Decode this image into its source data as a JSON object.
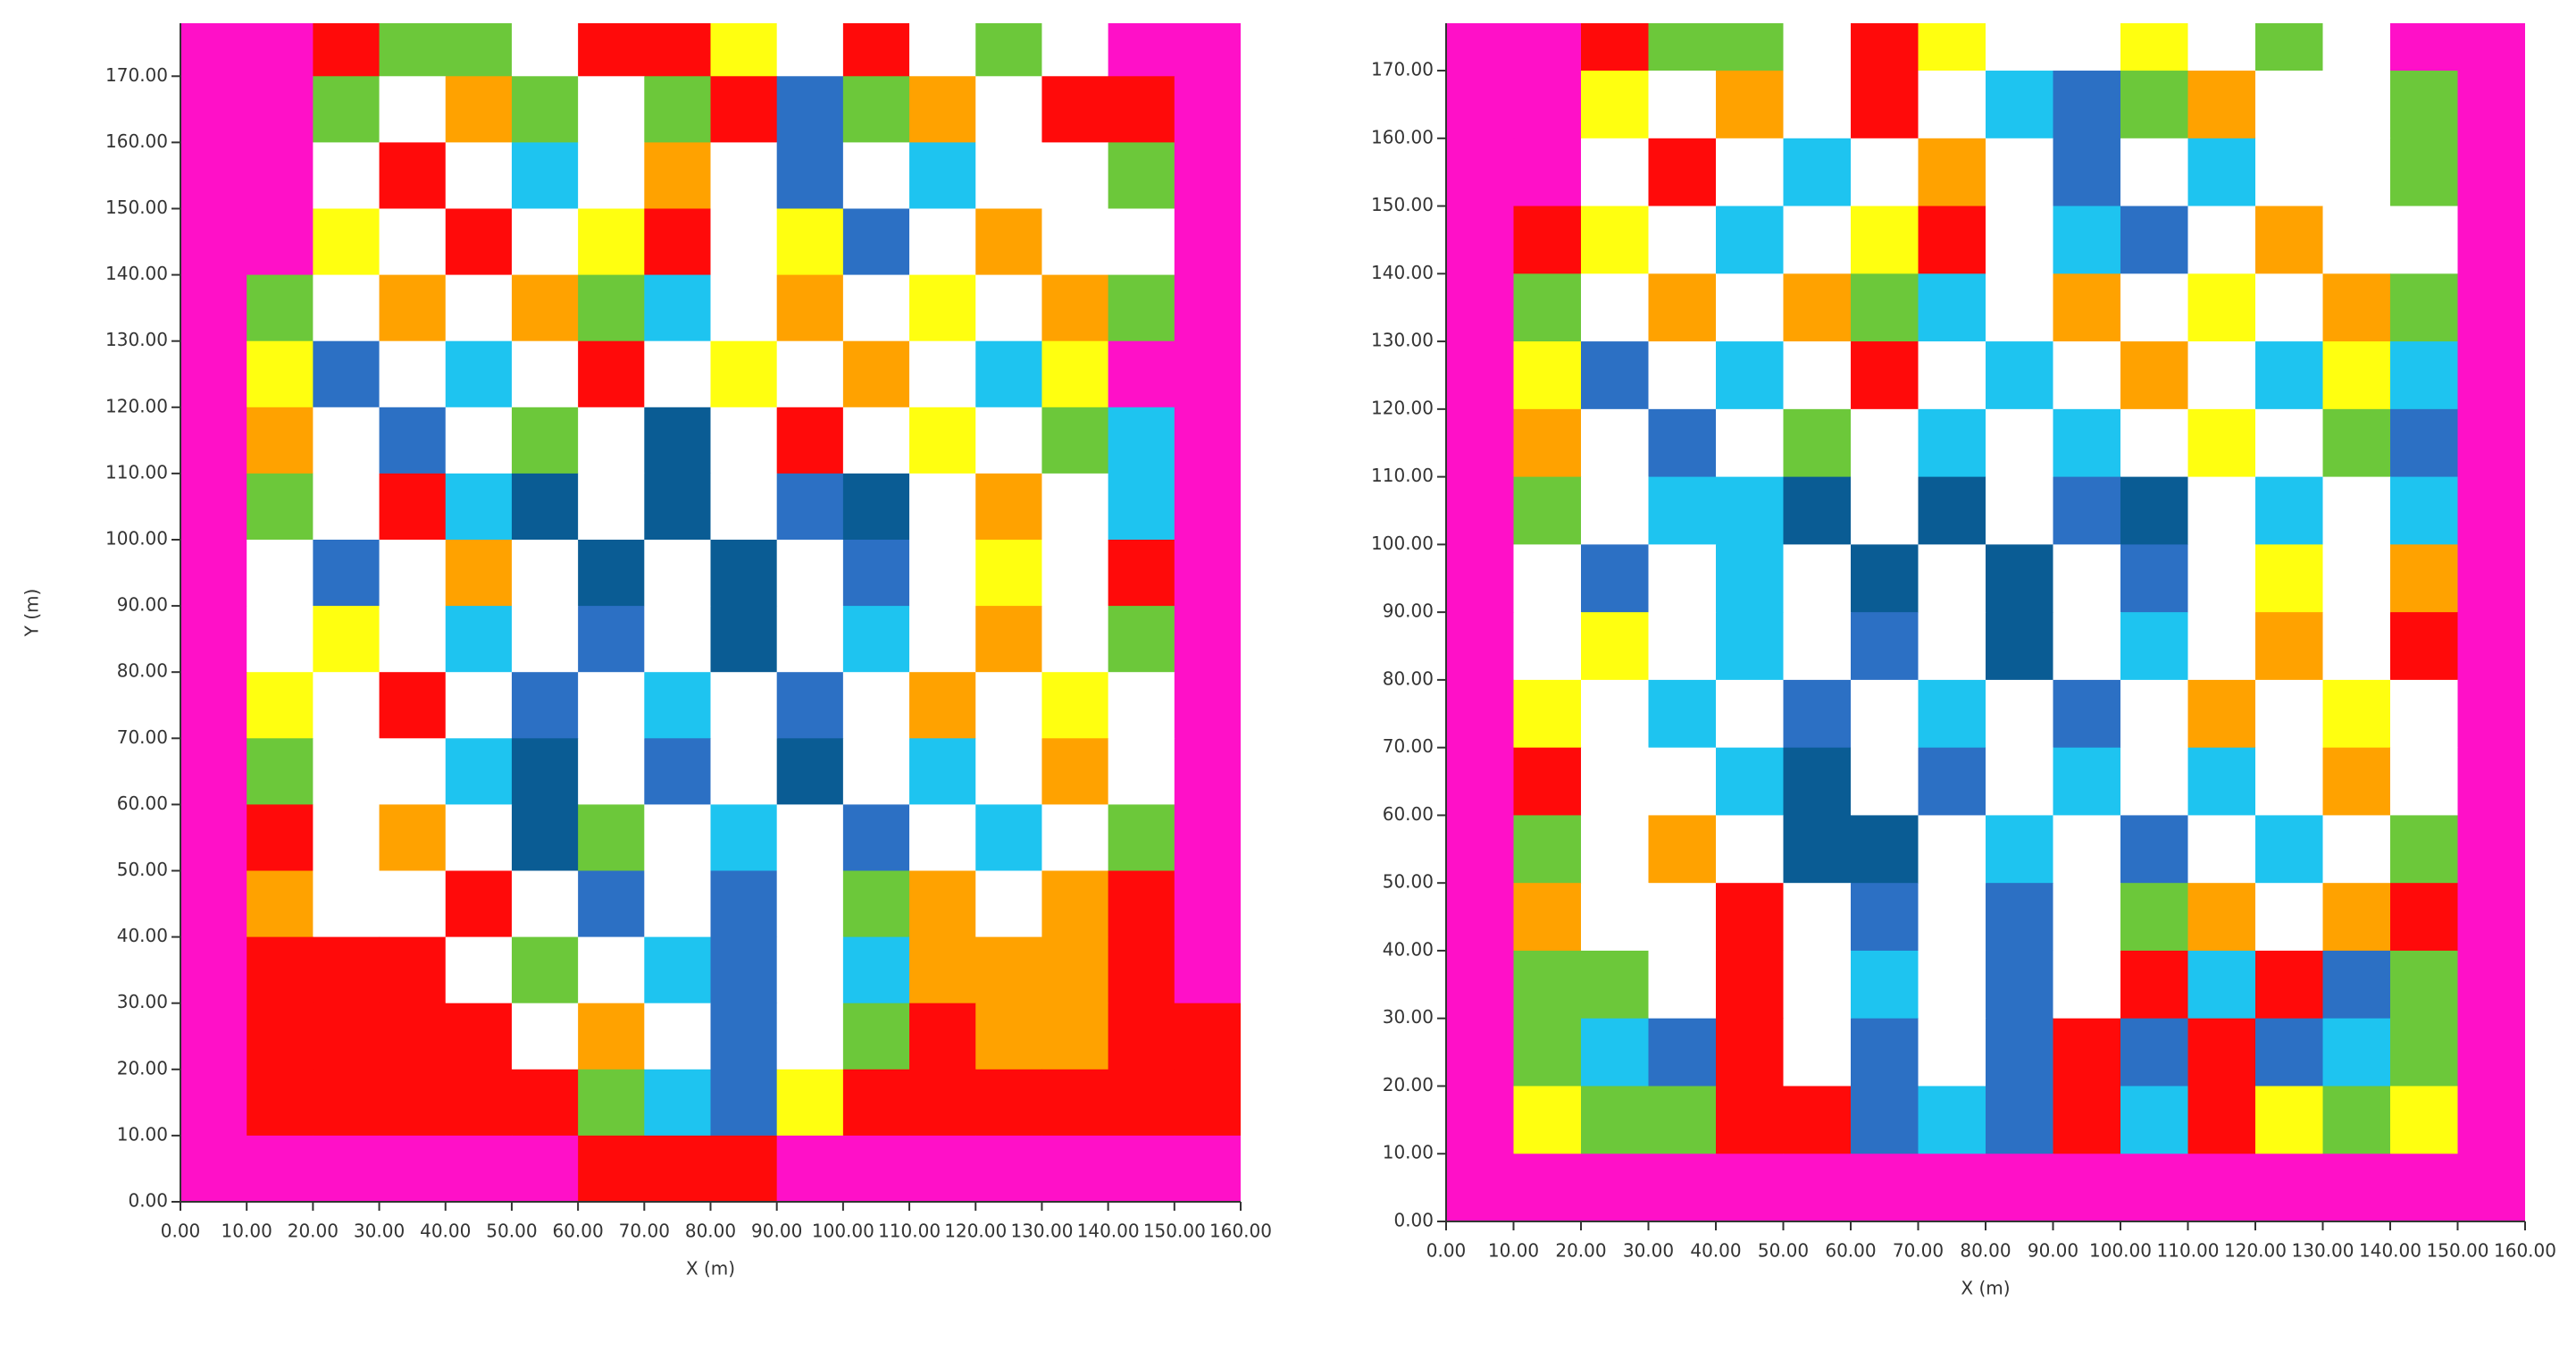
{
  "chart_data": [
    {
      "type": "heatmap",
      "x_label": "X (m)",
      "y_label": "Y (m)",
      "xlim": [
        0,
        160
      ],
      "ylim": [
        0,
        178
      ],
      "xticks": [
        {
          "value": 0,
          "label": "0.00"
        },
        {
          "value": 10,
          "label": "10.00"
        },
        {
          "value": 20,
          "label": "20.00"
        },
        {
          "value": 30,
          "label": "30.00"
        },
        {
          "value": 40,
          "label": "40.00"
        },
        {
          "value": 50,
          "label": "50.00"
        },
        {
          "value": 60,
          "label": "60.00"
        },
        {
          "value": 70,
          "label": "70.00"
        },
        {
          "value": 80,
          "label": "80.00"
        },
        {
          "value": 90,
          "label": "90.00"
        },
        {
          "value": 100,
          "label": "100.00"
        },
        {
          "value": 110,
          "label": "110.00"
        },
        {
          "value": 120,
          "label": "120.00"
        },
        {
          "value": 130,
          "label": "130.00"
        },
        {
          "value": 140,
          "label": "140.00"
        },
        {
          "value": 150,
          "label": "150.00"
        },
        {
          "value": 160,
          "label": "160.00"
        }
      ],
      "yticks": [
        {
          "value": 0,
          "label": "0.00"
        },
        {
          "value": 10,
          "label": "10.00"
        },
        {
          "value": 20,
          "label": "20.00"
        },
        {
          "value": 30,
          "label": "30.00"
        },
        {
          "value": 40,
          "label": "40.00"
        },
        {
          "value": 50,
          "label": "50.00"
        },
        {
          "value": 60,
          "label": "60.00"
        },
        {
          "value": 70,
          "label": "70.00"
        },
        {
          "value": 80,
          "label": "80.00"
        },
        {
          "value": 90,
          "label": "90.00"
        },
        {
          "value": 100,
          "label": "100.00"
        },
        {
          "value": 110,
          "label": "110.00"
        },
        {
          "value": 120,
          "label": "120.00"
        },
        {
          "value": 130,
          "label": "130.00"
        },
        {
          "value": 140,
          "label": "140.00"
        },
        {
          "value": 150,
          "label": "150.00"
        },
        {
          "value": 160,
          "label": "160.00"
        },
        {
          "value": 170,
          "label": "170.00"
        }
      ],
      "colors": [
        "#ff10c8",
        "#ff0a0a",
        "#ffa200",
        "#ffff10",
        "#6cc83a",
        "#1ec4f0",
        "#2c70c4",
        "#0a5c94",
        "#ffffff"
      ],
      "xbins": [
        0,
        10,
        20,
        30,
        40,
        50,
        60,
        70,
        80,
        90,
        100,
        110,
        120,
        130,
        140,
        150,
        160
      ],
      "ybins": [
        180,
        170,
        160,
        150,
        140,
        130,
        120,
        110,
        100,
        90,
        80,
        70,
        60,
        50,
        40,
        30,
        20,
        10,
        0
      ],
      "values": [
        [
          0,
          0,
          1,
          4,
          4,
          8,
          1,
          1,
          3,
          8,
          1,
          8,
          4,
          8,
          0,
          0
        ],
        [
          0,
          0,
          4,
          8,
          2,
          4,
          8,
          4,
          1,
          6,
          4,
          2,
          8,
          1,
          1,
          0
        ],
        [
          0,
          0,
          8,
          1,
          8,
          5,
          8,
          2,
          8,
          6,
          8,
          5,
          8,
          8,
          4,
          0
        ],
        [
          0,
          0,
          3,
          8,
          1,
          8,
          3,
          1,
          8,
          3,
          6,
          8,
          2,
          8,
          8,
          0
        ],
        [
          0,
          4,
          8,
          2,
          8,
          2,
          4,
          5,
          8,
          2,
          8,
          3,
          8,
          2,
          4,
          0
        ],
        [
          0,
          3,
          6,
          8,
          5,
          8,
          1,
          8,
          3,
          8,
          2,
          8,
          5,
          3,
          0,
          0
        ],
        [
          0,
          2,
          8,
          6,
          8,
          4,
          8,
          7,
          8,
          1,
          8,
          3,
          8,
          4,
          5,
          0
        ],
        [
          0,
          4,
          8,
          1,
          5,
          7,
          8,
          7,
          8,
          6,
          7,
          8,
          2,
          8,
          5,
          0
        ],
        [
          0,
          8,
          6,
          8,
          2,
          8,
          7,
          8,
          7,
          8,
          6,
          8,
          3,
          8,
          1,
          0
        ],
        [
          0,
          8,
          3,
          8,
          5,
          8,
          6,
          8,
          7,
          8,
          5,
          8,
          2,
          8,
          4,
          0
        ],
        [
          0,
          3,
          8,
          1,
          8,
          6,
          8,
          5,
          8,
          6,
          8,
          2,
          8,
          3,
          8,
          0
        ],
        [
          0,
          4,
          8,
          8,
          5,
          7,
          8,
          6,
          8,
          7,
          8,
          5,
          8,
          2,
          8,
          0
        ],
        [
          0,
          1,
          8,
          2,
          8,
          7,
          4,
          8,
          5,
          8,
          6,
          8,
          5,
          8,
          4,
          0
        ],
        [
          0,
          2,
          8,
          8,
          1,
          8,
          6,
          8,
          6,
          8,
          4,
          2,
          8,
          2,
          1,
          0
        ],
        [
          0,
          1,
          1,
          1,
          8,
          4,
          8,
          5,
          6,
          8,
          5,
          2,
          2,
          2,
          1,
          0
        ],
        [
          0,
          1,
          1,
          1,
          1,
          8,
          2,
          8,
          6,
          8,
          4,
          1,
          2,
          2,
          1,
          1
        ],
        [
          0,
          1,
          1,
          1,
          1,
          1,
          4,
          5,
          6,
          3,
          1,
          1,
          1,
          1,
          1,
          1
        ],
        [
          0,
          0,
          0,
          0,
          0,
          0,
          1,
          1,
          1,
          0,
          0,
          0,
          0,
          0,
          0,
          0
        ]
      ]
    },
    {
      "type": "heatmap",
      "x_label": "X (m)",
      "xlim": [
        0,
        160
      ],
      "ylim": [
        0,
        177
      ],
      "xticks": [
        {
          "value": 0,
          "label": "0.00"
        },
        {
          "value": 10,
          "label": "10.00"
        },
        {
          "value": 20,
          "label": "20.00"
        },
        {
          "value": 30,
          "label": "30.00"
        },
        {
          "value": 40,
          "label": "40.00"
        },
        {
          "value": 50,
          "label": "50.00"
        },
        {
          "value": 60,
          "label": "60.00"
        },
        {
          "value": 70,
          "label": "70.00"
        },
        {
          "value": 80,
          "label": "80.00"
        },
        {
          "value": 90,
          "label": "90.00"
        },
        {
          "value": 100,
          "label": "100.00"
        },
        {
          "value": 110,
          "label": "110.00"
        },
        {
          "value": 120,
          "label": "120.00"
        },
        {
          "value": 130,
          "label": "130.00"
        },
        {
          "value": 140,
          "label": "140.00"
        },
        {
          "value": 150,
          "label": "150.00"
        },
        {
          "value": 160,
          "label": "160.00"
        }
      ],
      "yticks": [
        {
          "value": 0,
          "label": "0.00"
        },
        {
          "value": 10,
          "label": "10.00"
        },
        {
          "value": 20,
          "label": "20.00"
        },
        {
          "value": 30,
          "label": "30.00"
        },
        {
          "value": 40,
          "label": "40.00"
        },
        {
          "value": 50,
          "label": "50.00"
        },
        {
          "value": 60,
          "label": "60.00"
        },
        {
          "value": 70,
          "label": "70.00"
        },
        {
          "value": 80,
          "label": "80.00"
        },
        {
          "value": 90,
          "label": "90.00"
        },
        {
          "value": 100,
          "label": "100.00"
        },
        {
          "value": 110,
          "label": "110.00"
        },
        {
          "value": 120,
          "label": "120.00"
        },
        {
          "value": 130,
          "label": "130.00"
        },
        {
          "value": 140,
          "label": "140.00"
        },
        {
          "value": 150,
          "label": "150.00"
        },
        {
          "value": 160,
          "label": "160.00"
        },
        {
          "value": 170,
          "label": "170.00"
        }
      ],
      "colors": [
        "#ff10c8",
        "#ff0a0a",
        "#ffa200",
        "#ffff10",
        "#6cc83a",
        "#1ec4f0",
        "#2c70c4",
        "#0a5c94",
        "#ffffff"
      ],
      "xbins": [
        0,
        10,
        20,
        30,
        40,
        50,
        60,
        70,
        80,
        90,
        100,
        110,
        120,
        130,
        140,
        150,
        160
      ],
      "ybins": [
        180,
        170,
        160,
        150,
        140,
        130,
        120,
        110,
        100,
        90,
        80,
        70,
        60,
        50,
        40,
        30,
        20,
        10,
        0
      ],
      "values": [
        [
          0,
          0,
          1,
          4,
          4,
          8,
          1,
          3,
          8,
          8,
          3,
          8,
          4,
          8,
          0,
          0
        ],
        [
          0,
          0,
          3,
          8,
          2,
          8,
          1,
          8,
          5,
          6,
          4,
          2,
          8,
          8,
          4,
          0
        ],
        [
          0,
          0,
          8,
          1,
          8,
          5,
          8,
          2,
          8,
          6,
          8,
          5,
          8,
          8,
          4,
          0
        ],
        [
          0,
          1,
          3,
          8,
          5,
          8,
          3,
          1,
          8,
          5,
          6,
          8,
          2,
          8,
          8,
          0
        ],
        [
          0,
          4,
          8,
          2,
          8,
          2,
          4,
          5,
          8,
          2,
          8,
          3,
          8,
          2,
          4,
          0
        ],
        [
          0,
          3,
          6,
          8,
          5,
          8,
          1,
          8,
          5,
          8,
          2,
          8,
          5,
          3,
          5,
          0
        ],
        [
          0,
          2,
          8,
          6,
          8,
          4,
          8,
          5,
          8,
          5,
          8,
          3,
          8,
          4,
          6,
          0
        ],
        [
          0,
          4,
          8,
          5,
          5,
          7,
          8,
          7,
          8,
          6,
          7,
          8,
          5,
          8,
          5,
          0
        ],
        [
          0,
          8,
          6,
          8,
          5,
          8,
          7,
          8,
          7,
          8,
          6,
          8,
          3,
          8,
          2,
          0
        ],
        [
          0,
          8,
          3,
          8,
          5,
          8,
          6,
          8,
          7,
          8,
          5,
          8,
          2,
          8,
          1,
          0
        ],
        [
          0,
          3,
          8,
          5,
          8,
          6,
          8,
          5,
          8,
          6,
          8,
          2,
          8,
          3,
          8,
          0
        ],
        [
          0,
          1,
          8,
          8,
          5,
          7,
          8,
          6,
          8,
          5,
          8,
          5,
          8,
          2,
          8,
          0
        ],
        [
          0,
          4,
          8,
          2,
          8,
          7,
          7,
          8,
          5,
          8,
          6,
          8,
          5,
          8,
          4,
          0
        ],
        [
          0,
          2,
          8,
          8,
          1,
          8,
          6,
          8,
          6,
          8,
          4,
          2,
          8,
          2,
          1,
          0
        ],
        [
          0,
          4,
          4,
          8,
          1,
          8,
          5,
          8,
          6,
          8,
          1,
          5,
          1,
          6,
          4,
          0
        ],
        [
          0,
          4,
          5,
          6,
          1,
          8,
          6,
          8,
          6,
          1,
          6,
          1,
          6,
          5,
          4,
          0
        ],
        [
          0,
          3,
          4,
          4,
          1,
          1,
          6,
          5,
          6,
          1,
          5,
          1,
          3,
          4,
          3,
          0
        ],
        [
          0,
          0,
          0,
          0,
          0,
          0,
          0,
          0,
          0,
          0,
          0,
          0,
          0,
          0,
          0,
          0
        ]
      ]
    }
  ]
}
